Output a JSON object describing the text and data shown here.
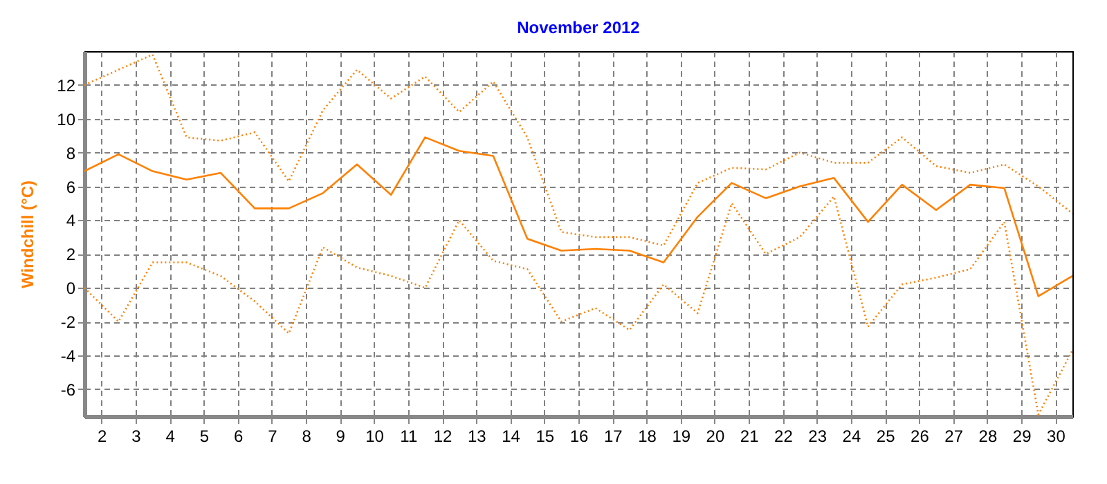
{
  "chart_data": {
    "type": "line",
    "title": "November 2012",
    "ylabel": "Windchill  (°C)",
    "x": [
      1.5,
      2.5,
      3.5,
      4.5,
      5.5,
      6.5,
      7.5,
      8.5,
      9.5,
      10.5,
      11.5,
      12.5,
      13.5,
      14.5,
      15.5,
      16.5,
      17.5,
      18.5,
      19.5,
      20.5,
      21.5,
      22.5,
      23.5,
      24.5,
      25.5,
      26.5,
      27.5,
      28.5,
      29.5,
      30.5
    ],
    "xlim": [
      1.5,
      30.5
    ],
    "xticks": [
      2,
      3,
      4,
      5,
      6,
      7,
      8,
      9,
      10,
      11,
      12,
      13,
      14,
      15,
      16,
      17,
      18,
      19,
      20,
      21,
      22,
      23,
      24,
      25,
      26,
      27,
      28,
      29,
      30
    ],
    "ylim": [
      -7.6,
      14
    ],
    "yticks": [
      -6,
      -4,
      -2,
      0,
      2,
      4,
      6,
      8,
      10,
      12
    ],
    "grid": true,
    "marker": "none",
    "series": [
      {
        "color": "#ff8000",
        "line_style": "dotted",
        "values": [
          12.0,
          12.9,
          13.8,
          8.9,
          8.7,
          9.2,
          6.3,
          10.5,
          12.9,
          11.2,
          12.5,
          10.4,
          12.2,
          8.9,
          3.3,
          3.0,
          3.0,
          2.5,
          6.2,
          7.1,
          7.0,
          8.0,
          7.4,
          7.4,
          8.9,
          7.2,
          6.8,
          7.3,
          6.0,
          4.4
        ]
      },
      {
        "color": "#ff8000",
        "line_style": "solid",
        "values": [
          6.9,
          7.9,
          6.9,
          6.4,
          6.8,
          4.7,
          4.7,
          5.6,
          7.3,
          5.5,
          8.9,
          8.1,
          7.8,
          2.9,
          2.2,
          2.3,
          2.2,
          1.5,
          4.2,
          6.2,
          5.3,
          6.0,
          6.5,
          3.9,
          6.1,
          4.6,
          6.1,
          5.9,
          -0.5,
          0.7
        ]
      },
      {
        "color": "#ff8000",
        "line_style": "dotted",
        "values": [
          0.0,
          -2.0,
          1.5,
          1.5,
          0.7,
          -0.8,
          -2.7,
          2.4,
          1.2,
          0.7,
          0.0,
          4.0,
          1.6,
          1.1,
          -2.0,
          -1.2,
          -2.5,
          0.2,
          -1.5,
          5.0,
          2.0,
          3.0,
          5.4,
          -2.3,
          0.2,
          0.6,
          1.1,
          3.9,
          -7.5,
          -3.7
        ]
      }
    ]
  }
}
